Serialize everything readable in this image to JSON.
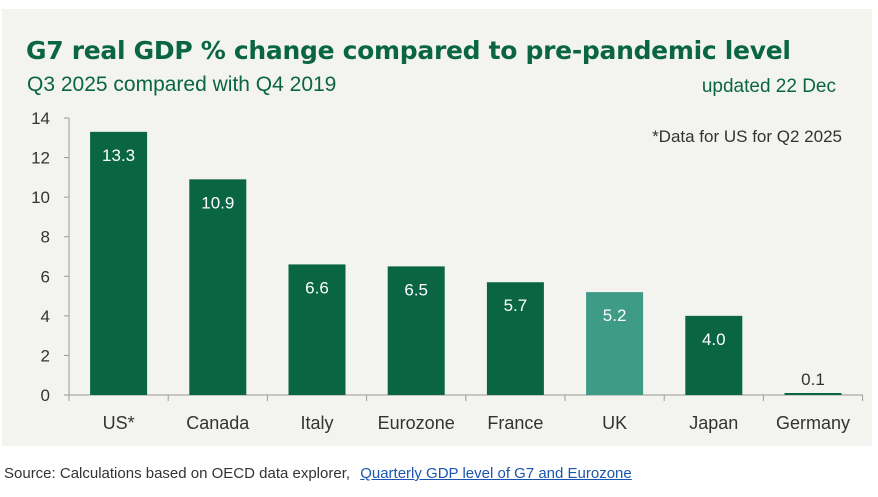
{
  "title": "G7 real GDP % change compared to pre-pandemic level",
  "subtitle": "Q3 2025 compared with Q4 2019",
  "updated": "updated 22 Dec",
  "footnote": "*Data for US for Q2 2025",
  "source": {
    "prefix": "Source: Calculations based on OECD data explorer,",
    "link_text": "Quarterly GDP level of G7 and Eurozone"
  },
  "colors": {
    "bar": "#0a6544",
    "highlight": "#3d9b86",
    "title": "#0a6544",
    "panel": "#f3f3f0",
    "axis": "#9a9a9a",
    "link": "#1a55b0"
  },
  "chart_data": {
    "type": "bar",
    "title": "G7 real GDP % change compared to pre-pandemic level",
    "subtitle": "Q3 2025 compared with Q4 2019",
    "categories": [
      "US*",
      "Canada",
      "Italy",
      "Eurozone",
      "France",
      "UK",
      "Japan",
      "Germany"
    ],
    "values": [
      13.3,
      10.9,
      6.6,
      6.5,
      5.7,
      5.2,
      4.0,
      0.1
    ],
    "value_labels": [
      "13.3",
      "10.9",
      "6.6",
      "6.5",
      "5.7",
      "5.2",
      "4.0",
      "0.1"
    ],
    "highlight": "UK",
    "ylim": [
      0,
      14
    ],
    "yticks": [
      0,
      2,
      4,
      6,
      8,
      10,
      12,
      14
    ],
    "xlabel": "",
    "ylabel": "",
    "grid": false,
    "legend": "none"
  }
}
